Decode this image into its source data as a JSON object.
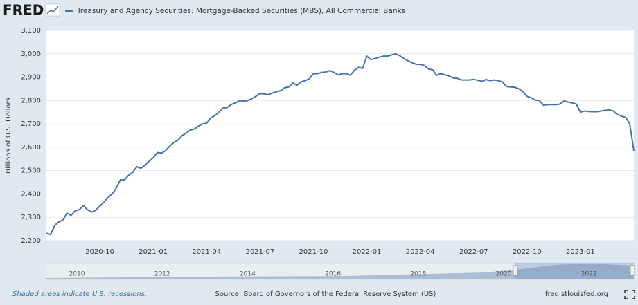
{
  "header": {
    "logo": "FRED"
  },
  "chart_data": {
    "type": "line",
    "categories": [
      null,
      null,
      null,
      null,
      null,
      null,
      null,
      null,
      null,
      null,
      null,
      null,
      null,
      "2020-10",
      null,
      null,
      null,
      null,
      null,
      null,
      null,
      null,
      null,
      null,
      null,
      null,
      "2021-01",
      null,
      null,
      null,
      null,
      null,
      null,
      null,
      null,
      null,
      null,
      null,
      null,
      "2021-04",
      null,
      null,
      null,
      null,
      null,
      null,
      null,
      null,
      null,
      null,
      null,
      null,
      "2021-07",
      null,
      null,
      null,
      null,
      null,
      null,
      null,
      null,
      null,
      null,
      null,
      null,
      "2021-10",
      null,
      null,
      null,
      null,
      null,
      null,
      null,
      null,
      null,
      null,
      null,
      null,
      "2022-01",
      null,
      null,
      null,
      null,
      null,
      null,
      null,
      null,
      null,
      null,
      null,
      null,
      "2022-04",
      null,
      null,
      null,
      null,
      null,
      null,
      null,
      null,
      null,
      null,
      null,
      null,
      "2022-07",
      null,
      null,
      null,
      null,
      null,
      null,
      null,
      null,
      null,
      null,
      null,
      null,
      "2022-10",
      null,
      null,
      null,
      null,
      null,
      null,
      null,
      null,
      null,
      null,
      null,
      null,
      "2023-01",
      null,
      null,
      null,
      null,
      null,
      null,
      null,
      null,
      null,
      null,
      null,
      null,
      null
    ],
    "series": [
      {
        "name": "Treasury and Agency Securities: Mortgage-Backed Securities (MBS), All Commercial Banks",
        "color": "#4572a7",
        "values": [
          2232,
          2226,
          2265,
          2280,
          2288,
          2318,
          2308,
          2328,
          2333,
          2349,
          2333,
          2322,
          2330,
          2348,
          2365,
          2385,
          2400,
          2425,
          2460,
          2460,
          2480,
          2493,
          2517,
          2510,
          2523,
          2540,
          2555,
          2577,
          2575,
          2585,
          2605,
          2620,
          2630,
          2650,
          2660,
          2673,
          2678,
          2690,
          2700,
          2703,
          2725,
          2735,
          2750,
          2768,
          2770,
          2783,
          2790,
          2800,
          2797,
          2800,
          2808,
          2818,
          2830,
          2828,
          2825,
          2832,
          2838,
          2842,
          2855,
          2858,
          2875,
          2865,
          2880,
          2885,
          2893,
          2915,
          2915,
          2920,
          2922,
          2928,
          2920,
          2910,
          2915,
          2915,
          2908,
          2930,
          2942,
          2938,
          2990,
          2975,
          2980,
          2985,
          2990,
          2990,
          2995,
          3000,
          2992,
          2980,
          2970,
          2962,
          2955,
          2955,
          2950,
          2935,
          2932,
          2908,
          2915,
          2910,
          2905,
          2897,
          2895,
          2888,
          2888,
          2888,
          2890,
          2887,
          2882,
          2890,
          2885,
          2888,
          2885,
          2880,
          2860,
          2858,
          2857,
          2850,
          2838,
          2818,
          2812,
          2802,
          2800,
          2780,
          2782,
          2783,
          2782,
          2785,
          2798,
          2793,
          2790,
          2785,
          2750,
          2755,
          2753,
          2752,
          2752,
          2755,
          2758,
          2760,
          2755,
          2740,
          2733,
          2728,
          2700,
          2585
        ]
      }
    ],
    "ylabel": "Billions of U.S. Dollars",
    "ylim": [
      2200,
      3100
    ],
    "yticks": [
      {
        "value": 2200,
        "label": "2,200"
      },
      {
        "value": 2300,
        "label": "2,300"
      },
      {
        "value": 2400,
        "label": "2,400"
      },
      {
        "value": 2500,
        "label": "2,500"
      },
      {
        "value": 2600,
        "label": "2,600"
      },
      {
        "value": 2700,
        "label": "2,700"
      },
      {
        "value": 2800,
        "label": "2,800"
      },
      {
        "value": 2900,
        "label": "2,900"
      },
      {
        "value": 3000,
        "label": "3,000"
      },
      {
        "value": 3100,
        "label": "3,100"
      }
    ],
    "grid": true
  },
  "navigator": {
    "labels": [
      "2010",
      "2012",
      "2014",
      "2016",
      "2018",
      "2020",
      "2022"
    ]
  },
  "footer": {
    "note": "Shaded areas indicate U.S. recessions.",
    "source": "Source: Board of Governors of the Federal Reserve System (US)",
    "site": "fred.stlouisfed.org"
  }
}
